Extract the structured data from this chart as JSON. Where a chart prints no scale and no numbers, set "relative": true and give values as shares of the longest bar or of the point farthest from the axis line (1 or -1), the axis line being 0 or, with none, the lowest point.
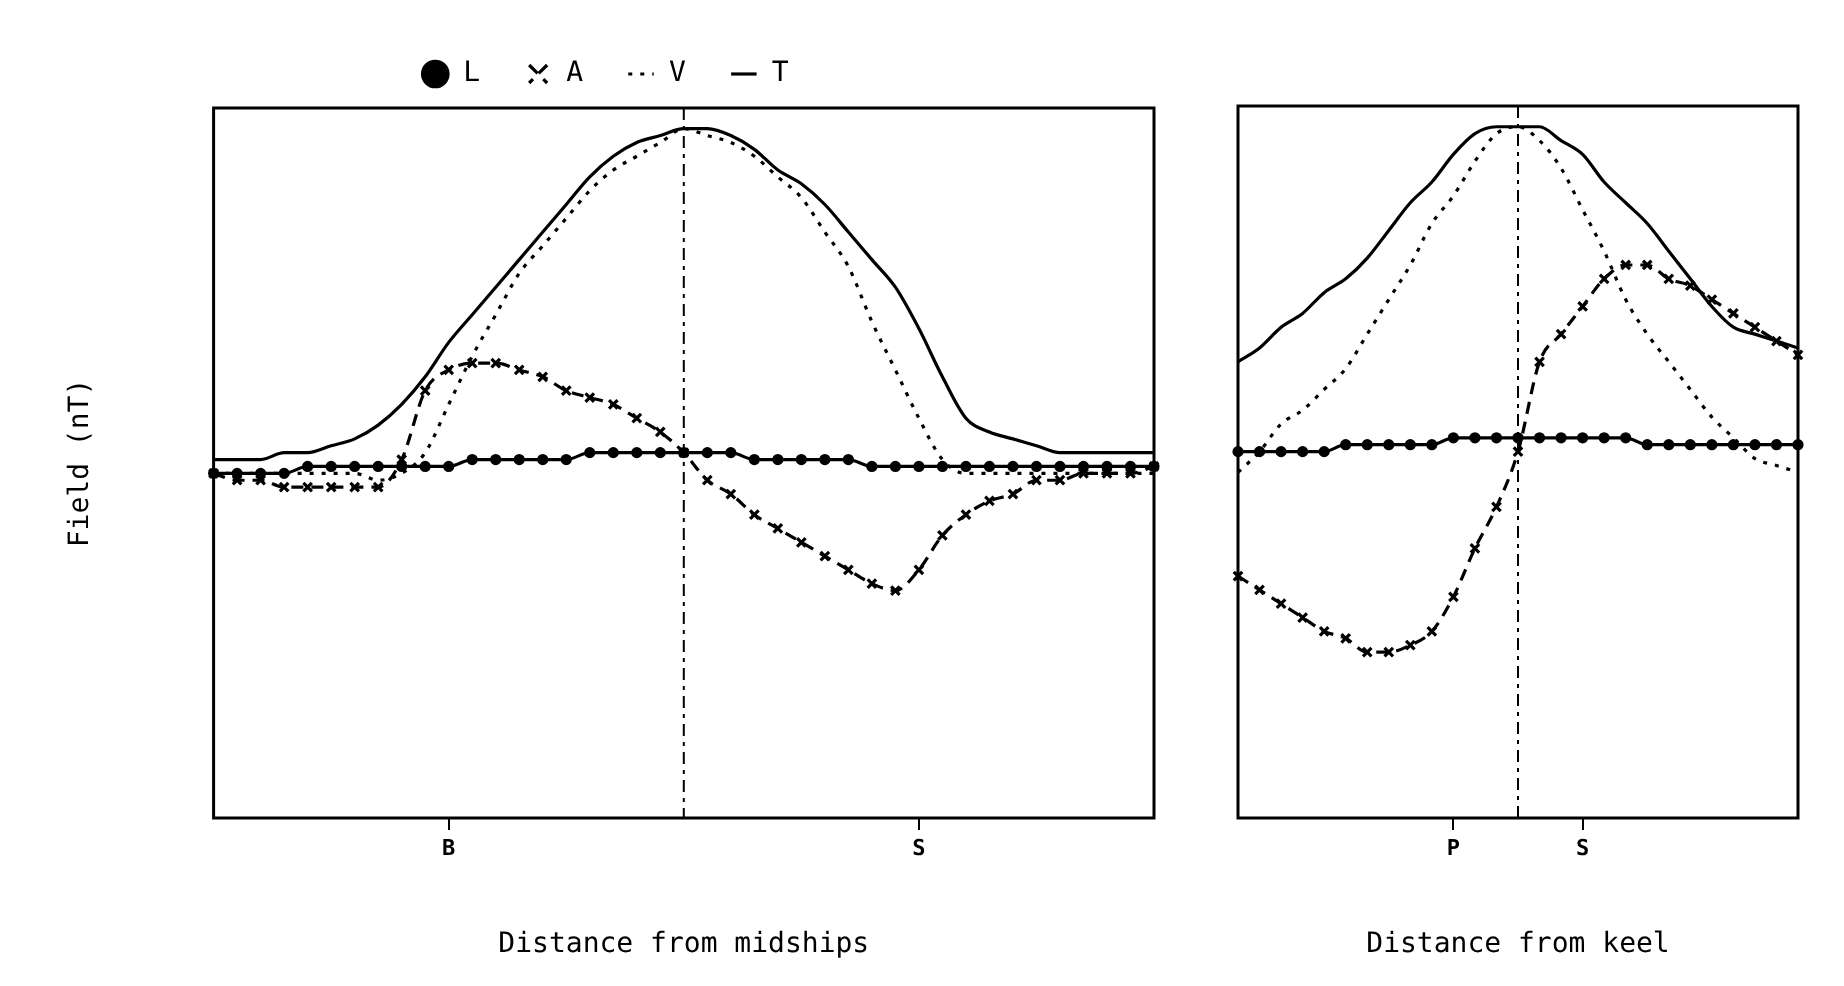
{
  "chart_data": [
    {
      "type": "line",
      "relative": true,
      "xlabel": "Distance from midships",
      "ylabel": "Field (nT)",
      "legend": "top",
      "categories": [
        null,
        null,
        null,
        null,
        null,
        null,
        null,
        null,
        null,
        null,
        "B",
        null,
        null,
        null,
        null,
        null,
        null,
        null,
        null,
        null,
        null,
        null,
        null,
        null,
        null,
        null,
        null,
        null,
        null,
        null,
        "S",
        null,
        null,
        null,
        null,
        null,
        null,
        null,
        null,
        null,
        null
      ],
      "series": [
        {
          "name": "L",
          "color": "#000000",
          "marker": "circle",
          "line_style": "solid",
          "values": [
            0.5,
            0.5,
            0.5,
            0.5,
            0.51,
            0.51,
            0.51,
            0.51,
            0.51,
            0.51,
            0.51,
            0.52,
            0.52,
            0.52,
            0.52,
            0.52,
            0.53,
            0.53,
            0.53,
            0.53,
            0.53,
            0.53,
            0.53,
            0.52,
            0.52,
            0.52,
            0.52,
            0.52,
            0.51,
            0.51,
            0.51,
            0.51,
            0.51,
            0.51,
            0.51,
            0.51,
            0.51,
            0.51,
            0.51,
            0.51,
            0.51
          ]
        },
        {
          "name": "A",
          "color": "#000000",
          "marker": "cross",
          "line_style": "dashed",
          "values": [
            0.5,
            0.49,
            0.49,
            0.48,
            0.48,
            0.48,
            0.48,
            0.48,
            0.52,
            0.62,
            0.65,
            0.66,
            0.66,
            0.65,
            0.64,
            0.62,
            0.61,
            0.6,
            0.58,
            0.56,
            0.53,
            0.49,
            0.47,
            0.44,
            0.42,
            0.4,
            0.38,
            0.36,
            0.34,
            0.33,
            0.36,
            0.41,
            0.44,
            0.46,
            0.47,
            0.49,
            0.49,
            0.5,
            0.5,
            0.5,
            0.51
          ]
        },
        {
          "name": "V",
          "color": "#000000",
          "marker": "none",
          "line_style": "dotted",
          "values": [
            0.5,
            0.5,
            0.5,
            0.5,
            0.5,
            0.5,
            0.5,
            0.49,
            0.5,
            0.53,
            0.6,
            0.67,
            0.73,
            0.79,
            0.83,
            0.87,
            0.91,
            0.94,
            0.96,
            0.98,
            1.0,
            0.99,
            0.98,
            0.96,
            0.93,
            0.9,
            0.85,
            0.8,
            0.72,
            0.65,
            0.58,
            0.52,
            0.5,
            0.5,
            0.5,
            0.5,
            0.5,
            0.5,
            0.5,
            0.5,
            0.5
          ]
        },
        {
          "name": "T",
          "color": "#000000",
          "marker": "none",
          "line_style": "solid",
          "values": [
            0.52,
            0.52,
            0.52,
            0.53,
            0.53,
            0.54,
            0.55,
            0.57,
            0.6,
            0.64,
            0.69,
            0.73,
            0.77,
            0.81,
            0.85,
            0.89,
            0.93,
            0.96,
            0.98,
            0.99,
            1.0,
            1.0,
            0.99,
            0.97,
            0.94,
            0.92,
            0.89,
            0.85,
            0.81,
            0.77,
            0.71,
            0.64,
            0.58,
            0.56,
            0.55,
            0.54,
            0.53,
            0.53,
            0.53,
            0.53,
            0.53
          ]
        }
      ]
    },
    {
      "type": "line",
      "relative": true,
      "xlabel": "Distance from keel",
      "categories": [
        null,
        null,
        null,
        null,
        null,
        null,
        null,
        null,
        null,
        null,
        "P",
        null,
        null,
        null,
        null,
        null,
        "S",
        null,
        null,
        null,
        null,
        null,
        null,
        null,
        null,
        null,
        null
      ],
      "series": [
        {
          "color": "#000000",
          "marker": "circle",
          "line_style": "solid",
          "values": [
            0.53,
            0.53,
            0.53,
            0.53,
            0.53,
            0.54,
            0.54,
            0.54,
            0.54,
            0.54,
            0.55,
            0.55,
            0.55,
            0.55,
            0.55,
            0.55,
            0.55,
            0.55,
            0.55,
            0.54,
            0.54,
            0.54,
            0.54,
            0.54,
            0.54,
            0.54,
            0.54
          ]
        },
        {
          "color": "#000000",
          "marker": "cross",
          "line_style": "dashed",
          "values": [
            0.35,
            0.33,
            0.31,
            0.29,
            0.27,
            0.26,
            0.24,
            0.24,
            0.25,
            0.27,
            0.32,
            0.39,
            0.45,
            0.53,
            0.66,
            0.7,
            0.74,
            0.78,
            0.8,
            0.8,
            0.78,
            0.77,
            0.75,
            0.73,
            0.71,
            0.69,
            0.67
          ]
        },
        {
          "color": "#000000",
          "marker": "none",
          "line_style": "dotted",
          "values": [
            0.5,
            0.53,
            0.57,
            0.59,
            0.62,
            0.65,
            0.7,
            0.75,
            0.8,
            0.86,
            0.9,
            0.95,
            0.99,
            1.0,
            0.98,
            0.94,
            0.88,
            0.82,
            0.75,
            0.7,
            0.66,
            0.62,
            0.58,
            0.55,
            0.52,
            0.51,
            0.5
          ]
        },
        {
          "color": "#000000",
          "marker": "none",
          "line_style": "solid",
          "values": [
            0.66,
            0.68,
            0.71,
            0.73,
            0.76,
            0.78,
            0.81,
            0.85,
            0.89,
            0.92,
            0.96,
            0.99,
            1.0,
            1.0,
            1.0,
            0.98,
            0.96,
            0.92,
            0.89,
            0.86,
            0.82,
            0.78,
            0.74,
            0.71,
            0.7,
            0.69,
            0.68
          ]
        }
      ]
    }
  ]
}
